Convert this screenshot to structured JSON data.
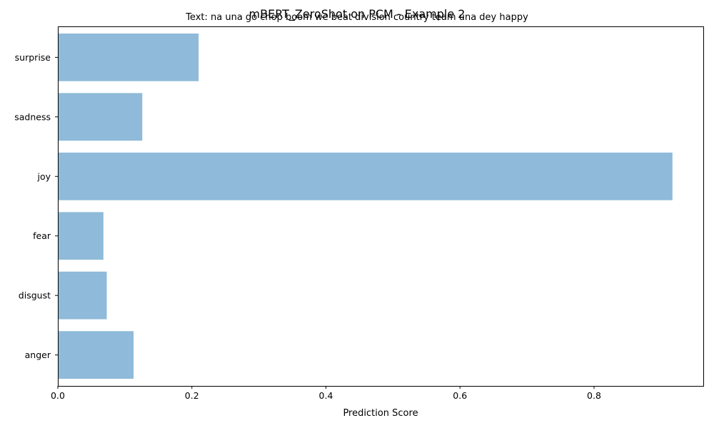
{
  "chart_data": {
    "type": "bar",
    "orientation": "horizontal",
    "title": "mBERT_ZeroShot on PCM - Example 2",
    "subtitle": "Text: na una go chop boom we beat division country team una dey happy",
    "xlabel": "Prediction Score",
    "ylabel": "",
    "categories": [
      "anger",
      "disgust",
      "fear",
      "joy",
      "sadness",
      "surprise"
    ],
    "values": [
      0.113,
      0.073,
      0.068,
      0.917,
      0.126,
      0.21
    ],
    "xlim": [
      0,
      0.963
    ],
    "xticks": [
      "0.0",
      "0.2",
      "0.4",
      "0.6",
      "0.8"
    ],
    "xtick_values": [
      0,
      0.2,
      0.4,
      0.6,
      0.8
    ],
    "bar_color": "#8fbad9",
    "grid": false
  }
}
